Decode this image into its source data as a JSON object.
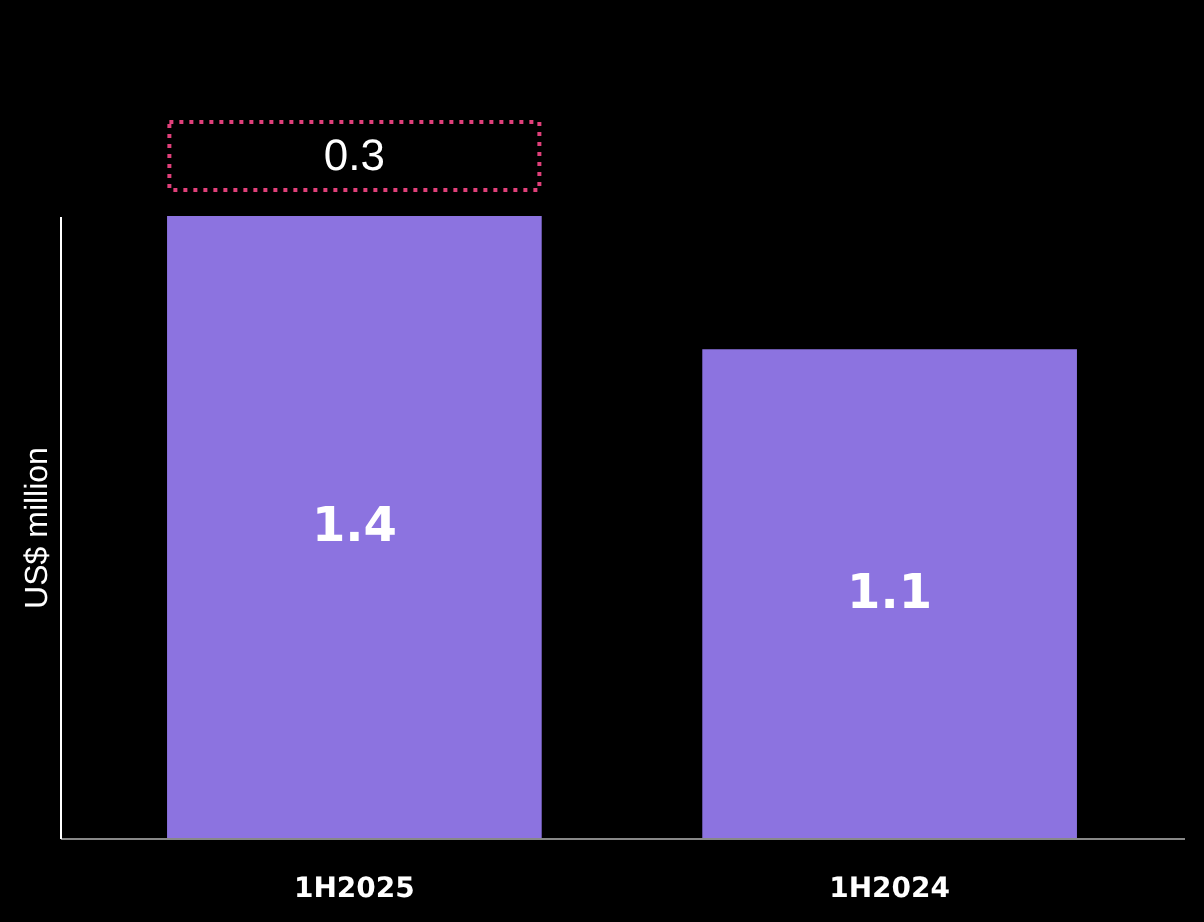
{
  "chart_data": {
    "type": "bar",
    "ylabel": "US$ million",
    "categories": [
      "1H2025",
      "1H2024"
    ],
    "values": [
      1.4,
      1.1
    ],
    "color": "#8c73e0",
    "ylim": [
      0,
      1.4
    ],
    "data_labels": true,
    "tick_labels": "x",
    "grid": false,
    "annotations": [
      "0.3"
    ]
  }
}
